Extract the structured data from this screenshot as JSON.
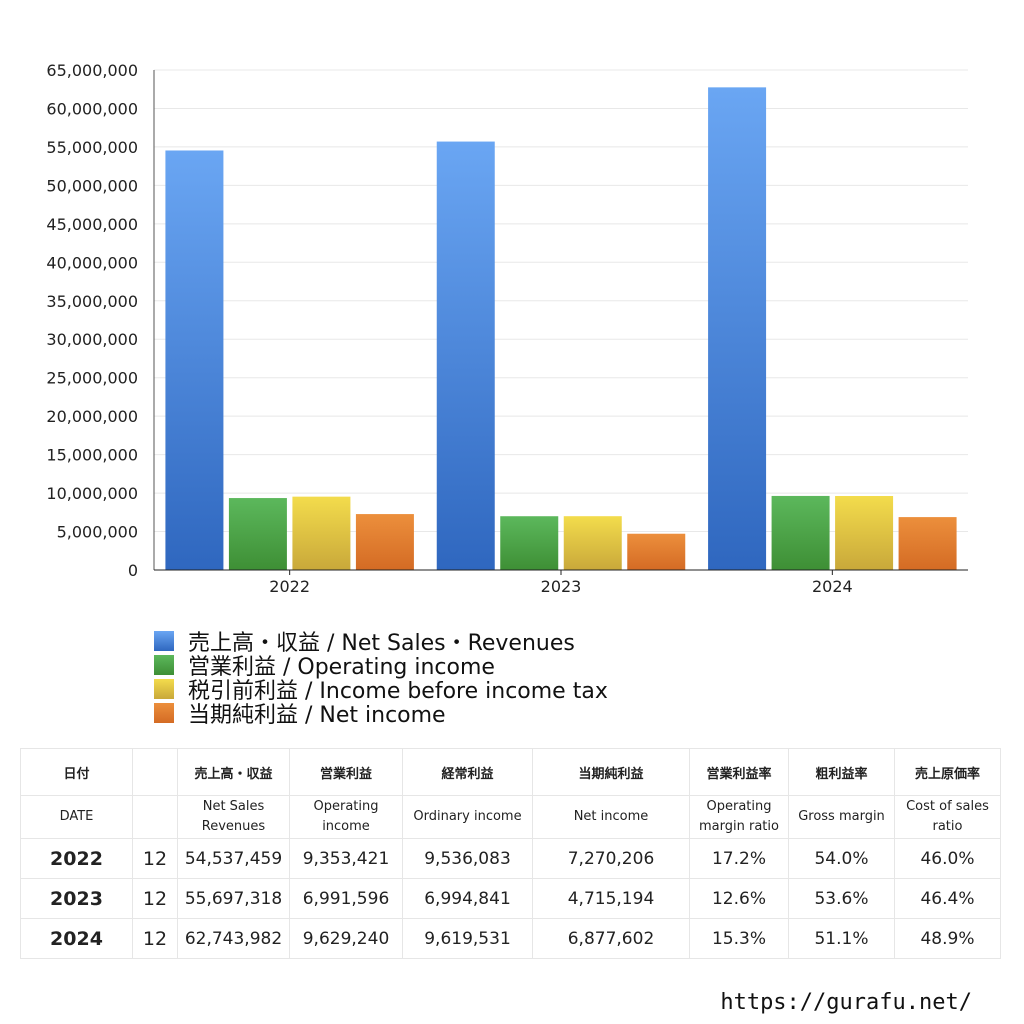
{
  "chart_data": {
    "type": "bar",
    "categories": [
      "2022",
      "2023",
      "2024"
    ],
    "series": [
      {
        "name": "売上高・収益 / Net Sales・Revenues",
        "values": [
          54537459,
          55697318,
          62743982
        ]
      },
      {
        "name": "営業利益 / Operating income",
        "values": [
          9353421,
          6991596,
          9629240
        ]
      },
      {
        "name": "税引前利益 / Income before income tax",
        "values": [
          9536083,
          6994841,
          9619531
        ]
      },
      {
        "name": "当期純利益 / Net income",
        "values": [
          7270206,
          4715194,
          6877602
        ]
      }
    ],
    "ylim": [
      0,
      65000000
    ],
    "yticks": [
      "0",
      "5,000,000",
      "10,000,000",
      "15,000,000",
      "20,000,000",
      "25,000,000",
      "30,000,000",
      "35,000,000",
      "40,000,000",
      "45,000,000",
      "50,000,000",
      "55,000,000",
      "60,000,000",
      "65,000,000"
    ],
    "ytick_values": [
      0,
      5000000,
      10000000,
      15000000,
      20000000,
      25000000,
      30000000,
      35000000,
      40000000,
      45000000,
      50000000,
      55000000,
      60000000,
      65000000
    ],
    "grid": true,
    "legend_position": "bottom",
    "colors": {
      "series_top": [
        "#6aa6f3",
        "#5cb85c",
        "#f3dc4c",
        "#ec8f3c"
      ],
      "series_bottom": [
        "#2f67bf",
        "#3e8f35",
        "#c9a83a",
        "#d46b24"
      ]
    }
  },
  "table": {
    "headers_jp": [
      "日付",
      "",
      "売上高・収益",
      "営業利益",
      "経常利益",
      "当期純利益",
      "営業利益率",
      "粗利益率",
      "売上原価率"
    ],
    "headers_en": [
      "DATE",
      "",
      "Net Sales Revenues",
      "Operating income",
      "Ordinary income",
      "Net income",
      "Operating margin ratio",
      "Gross margin",
      "Cost of sales ratio"
    ],
    "rows": [
      [
        "2022",
        "12",
        "54,537,459",
        "9,353,421",
        "9,536,083",
        "7,270,206",
        "17.2%",
        "54.0%",
        "46.0%"
      ],
      [
        "2023",
        "12",
        "55,697,318",
        "6,991,596",
        "6,994,841",
        "4,715,194",
        "12.6%",
        "53.6%",
        "46.4%"
      ],
      [
        "2024",
        "12",
        "62,743,982",
        "9,629,240",
        "9,619,531",
        "6,877,602",
        "15.3%",
        "51.1%",
        "48.9%"
      ]
    ]
  },
  "footer": {
    "url": "https://gurafu.net/"
  }
}
